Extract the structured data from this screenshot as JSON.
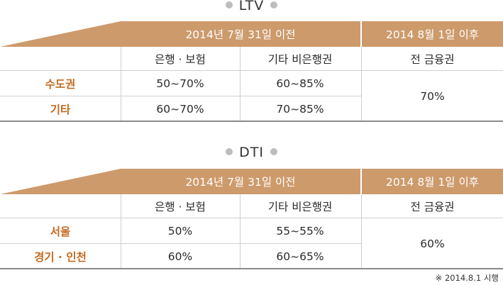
{
  "colors": {
    "header_bg": "#cd9a6b",
    "row_label": "#c46b20",
    "dot": "#bdbdbd"
  },
  "ltv": {
    "title": "LTV",
    "header_before": "2014년 7월 31일 이전",
    "header_after": "2014 8월 1일 이후",
    "sub_bank": "은행 · 보험",
    "sub_other": "기타 비은행권",
    "sub_all": "전 금융권",
    "rows": [
      {
        "label": "수도권",
        "bank": "50~70%",
        "other": "60~85%"
      },
      {
        "label": "기타",
        "bank": "60~70%",
        "other": "70~85%"
      }
    ],
    "all_value": "70%"
  },
  "dti": {
    "title": "DTI",
    "header_before": "2014년 7월 31일 이전",
    "header_after": "2014 8월 1일 이후",
    "sub_bank": "은행 · 보험",
    "sub_other": "기타 비은행권",
    "sub_all": "전 금융권",
    "rows": [
      {
        "label": "서울",
        "bank": "50%",
        "other": "55~55%"
      },
      {
        "label": "경기 · 인천",
        "bank": "60%",
        "other": "60~65%"
      }
    ],
    "all_value": "60%"
  },
  "footnote": "※ 2014.8.1 시행"
}
